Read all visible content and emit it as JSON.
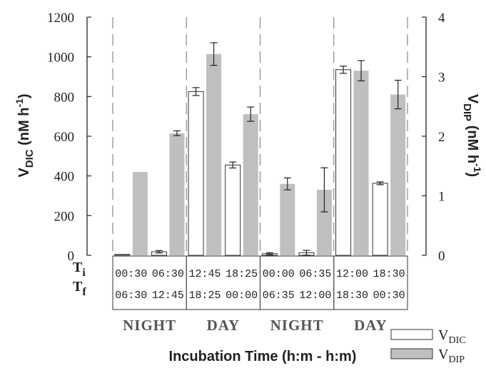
{
  "chart_data": {
    "type": "bar",
    "categories": [
      "00:30-06:30",
      "06:30-12:45",
      "12:45-18:25",
      "18:25-00:00",
      "00:00-06:35",
      "06:35-12:00",
      "12:00-18:30",
      "18:30-00:30"
    ],
    "ti": [
      "00:30",
      "06:30",
      "12:45",
      "18:25",
      "00:00",
      "06:35",
      "12:00",
      "18:30"
    ],
    "tf": [
      "06:30",
      "12:45",
      "18:25",
      "00:00",
      "06:35",
      "12:00",
      "18:30",
      "00:30"
    ],
    "periods": [
      "NIGHT",
      "DAY",
      "NIGHT",
      "DAY"
    ],
    "series": [
      {
        "key": "dic",
        "axis": "left",
        "values": [
          5,
          18,
          825,
          455,
          8,
          13,
          935,
          363
        ],
        "errors": [
          0,
          6,
          20,
          15,
          5,
          12,
          18,
          7
        ],
        "color": "#ffffff",
        "stroke": "#333333"
      },
      {
        "key": "dip",
        "axis": "right",
        "values": [
          1.4,
          2.05,
          3.38,
          2.37,
          1.2,
          1.1,
          3.1,
          2.7
        ],
        "errors": [
          0,
          0.04,
          0.19,
          0.12,
          0.1,
          0.37,
          0.17,
          0.24
        ],
        "color": "#bfbfbf"
      }
    ],
    "ylim_left": [
      0,
      1200
    ],
    "yticks_left": [
      0,
      200,
      400,
      600,
      800,
      1000,
      1200
    ],
    "ylim_right": [
      0,
      4
    ],
    "yticks_right": [
      0,
      1,
      2,
      3,
      4
    ],
    "ylabel_left": {
      "base": "V",
      "sub": "DIC",
      "rest": " (nM h",
      "sup": "-1",
      "end": ")"
    },
    "ylabel_right": {
      "base": "V",
      "sub": "DIP",
      "rest": " (nM h",
      "sup": "-1",
      "end": ")"
    },
    "xlabel": "Incubation Time (h:m - h:m)",
    "row_labels": {
      "ti": "T",
      "ti_sub": "i",
      "tf": "T",
      "tf_sub": "f"
    },
    "legend": [
      {
        "base": "V",
        "sub": "DIC",
        "fill": "#ffffff"
      },
      {
        "base": "V",
        "sub": "DIP",
        "fill": "#bfbfbf"
      }
    ],
    "legend_position": "bottom-right",
    "grid": false
  }
}
